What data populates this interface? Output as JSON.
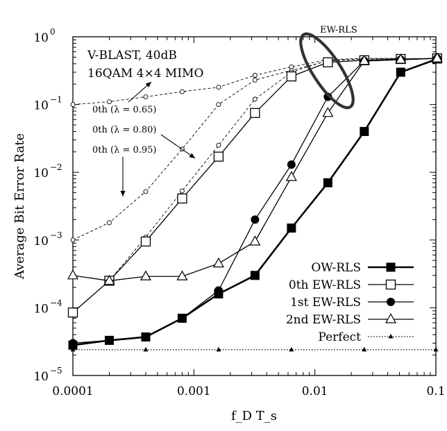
{
  "chart_data": {
    "type": "line",
    "annotations": {
      "scenario_line1": "V-BLAST, 40dB",
      "scenario_line2": "16QAM 4×4 MIMO",
      "ew_rls_label": "EW-RLS",
      "lambda_065": "0th (λ = 0.65)",
      "lambda_080": "0th (λ = 0.80)",
      "lambda_095": "0th (λ = 0.95)"
    },
    "xlabel": "f_D T_s",
    "ylabel": "Average Bit Error Rate",
    "xscale": "log",
    "yscale": "log",
    "xlim": [
      0.0001,
      0.1
    ],
    "ylim": [
      1e-05,
      1
    ],
    "xticks": [
      {
        "value": 0.0001,
        "label": "0.0001"
      },
      {
        "value": 0.001,
        "label": "0.001"
      },
      {
        "value": 0.01,
        "label": "0.01"
      },
      {
        "value": 0.1,
        "label": "0.1"
      }
    ],
    "yticks": [
      {
        "value": 1,
        "base": "10",
        "exp": "0"
      },
      {
        "value": 0.1,
        "base": "10",
        "exp": "−1"
      },
      {
        "value": 0.01,
        "base": "10",
        "exp": "−2"
      },
      {
        "value": 0.001,
        "base": "10",
        "exp": "−3"
      },
      {
        "value": 0.0001,
        "base": "10",
        "exp": "−4"
      },
      {
        "value": 1e-05,
        "base": "10",
        "exp": "−5"
      }
    ],
    "legend_position": "bottom-right",
    "series": [
      {
        "name": "OW-RLS",
        "marker": "filled-square",
        "line": "solid-thick",
        "x": [
          0.0001,
          0.0002,
          0.0004,
          0.0008,
          0.0016,
          0.0032,
          0.0064,
          0.0128,
          0.0256,
          0.0512,
          0.1024
        ],
        "y": [
          2.8e-05,
          3.3e-05,
          3.7e-05,
          7e-05,
          0.00016,
          0.0003,
          0.0015,
          0.007,
          0.04,
          0.3,
          0.47
        ]
      },
      {
        "name": "0th EW-RLS",
        "marker": "open-square",
        "line": "solid",
        "x": [
          0.0001,
          0.0002,
          0.0004,
          0.0008,
          0.0016,
          0.0032,
          0.0064,
          0.0128,
          0.0256,
          0.0512,
          0.1024
        ],
        "y": [
          8.5e-05,
          0.00025,
          0.00095,
          0.0041,
          0.017,
          0.075,
          0.26,
          0.42,
          0.45,
          0.47,
          0.48
        ]
      },
      {
        "name": "1st EW-RLS",
        "marker": "filled-circle",
        "line": "solid",
        "x": [
          0.0001,
          0.0002,
          0.0004,
          0.0008,
          0.0016,
          0.0032,
          0.0064,
          0.0128,
          0.0256,
          0.0512,
          0.1024
        ],
        "y": [
          3e-05,
          3.3e-05,
          3.7e-05,
          7e-05,
          0.00018,
          0.002,
          0.013,
          0.13,
          0.44,
          0.46,
          0.48
        ]
      },
      {
        "name": "2nd EW-RLS",
        "marker": "open-triangle",
        "line": "solid",
        "x": [
          0.0001,
          0.0002,
          0.0004,
          0.0008,
          0.0016,
          0.0032,
          0.0064,
          0.0128,
          0.0256,
          0.0512,
          0.1024
        ],
        "y": [
          0.0003,
          0.00025,
          0.00029,
          0.00029,
          0.00045,
          0.00095,
          0.0085,
          0.075,
          0.44,
          0.46,
          0.48
        ]
      },
      {
        "name": "Perfect",
        "marker": "small-filled-triangle",
        "line": "dotted",
        "x": [
          0.0001,
          0.0004,
          0.0016,
          0.0064,
          0.0256,
          0.1
        ],
        "y": [
          2.4e-05,
          2.4e-05,
          2.4e-05,
          2.4e-05,
          2.4e-05,
          2.4e-05
        ]
      },
      {
        "marker": "small-open-circle",
        "line": "dashed",
        "x": [
          0.0001,
          0.0002,
          0.0004,
          0.0008,
          0.0016,
          0.0032,
          0.0064,
          0.0128,
          0.0256,
          0.0512
        ],
        "y": [
          0.1,
          0.11,
          0.13,
          0.155,
          0.18,
          0.27,
          0.36,
          0.46,
          0.48,
          0.48
        ]
      },
      {
        "marker": "small-open-circle",
        "line": "dashed",
        "x": [
          0.0001,
          0.0002,
          0.0004,
          0.0008,
          0.0016,
          0.0032,
          0.0064,
          0.0128,
          0.0256,
          0.0512
        ],
        "y": [
          0.001,
          0.0018,
          0.0052,
          0.022,
          0.1,
          0.23,
          0.32,
          0.44,
          0.47,
          0.48
        ]
      },
      {
        "marker": "small-open-circle",
        "line": "dashed",
        "x": [
          0.0001,
          0.0002,
          0.0004,
          0.0008,
          0.0016,
          0.0032,
          0.0064,
          0.0128,
          0.0256,
          0.0512
        ],
        "y": [
          8.5e-05,
          0.00025,
          0.0011,
          0.0053,
          0.025,
          0.12,
          0.3,
          0.45,
          0.47,
          0.48
        ]
      }
    ]
  }
}
